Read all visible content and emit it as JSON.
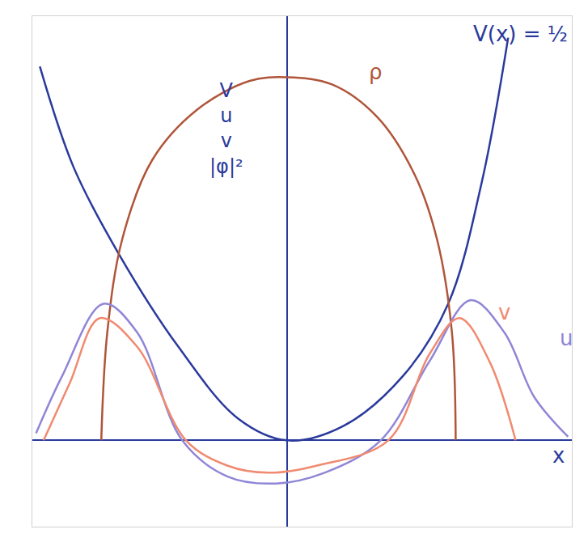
{
  "chart_data": {
    "type": "line",
    "x_label": "x",
    "y_label": [
      "V",
      "u",
      "v",
      "|φ|²"
    ],
    "xlim": [
      -3.4,
      3.8
    ],
    "ylim": [
      -1.2,
      5.9
    ],
    "xticks": [],
    "yticks": [],
    "tick_labels": false,
    "grid": false,
    "series": [
      {
        "name": "V(x) = ½",
        "color": "#2a3a9c",
        "x": [
          -3.3,
          -2.85,
          -2.25,
          -1.45,
          -0.65,
          0,
          0.75,
          1.55,
          2.15,
          2.6,
          2.95
        ],
        "values": [
          5.2,
          3.8,
          2.6,
          1.3,
          0.3,
          0,
          0.2,
          0.9,
          1.9,
          3.6,
          5.6
        ]
      },
      {
        "name": "ρ",
        "color": "#b0553a",
        "x": [
          -2.48,
          -2.4,
          -2.2,
          -1.8,
          -1.2,
          -0.5,
          0,
          0.6,
          1.2,
          1.7,
          2.0,
          2.2,
          2.25
        ],
        "values": [
          0,
          1.5,
          2.8,
          3.9,
          4.6,
          5.0,
          5.05,
          4.95,
          4.5,
          3.7,
          2.8,
          1.5,
          0
        ]
      },
      {
        "name": "u",
        "color": "#8f86d6",
        "x": [
          -3.35,
          -3.0,
          -2.45,
          -2.0,
          -1.4,
          -0.8,
          -0.15,
          0.5,
          1.25,
          1.9,
          2.45,
          2.9,
          3.3,
          3.75
        ],
        "values": [
          0.1,
          0.9,
          1.9,
          1.5,
          0.0,
          -0.5,
          -0.6,
          -0.45,
          0.0,
          1.1,
          1.95,
          1.5,
          0.6,
          0.05
        ]
      },
      {
        "name": "v",
        "color": "#f08a70",
        "x": [
          -3.25,
          -2.9,
          -2.5,
          -2.0,
          -1.35,
          -0.8,
          -0.25,
          0.4,
          1.35,
          1.9,
          2.3,
          2.7,
          3.05
        ],
        "values": [
          0.0,
          0.8,
          1.7,
          1.3,
          0.0,
          -0.35,
          -0.45,
          -0.35,
          0.0,
          1.2,
          1.7,
          1.1,
          0.0
        ]
      }
    ]
  }
}
